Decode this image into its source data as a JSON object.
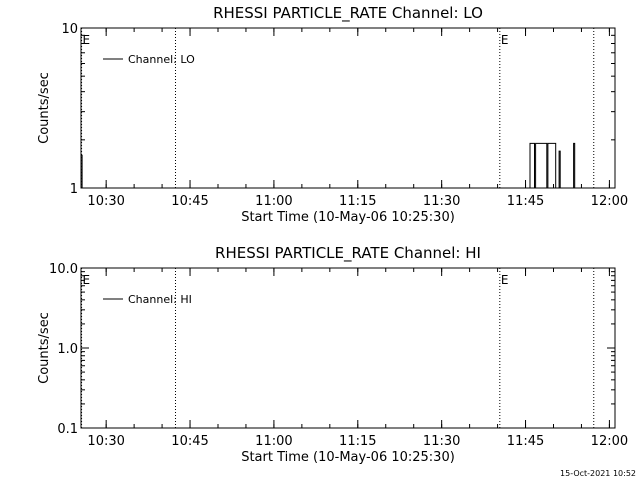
{
  "footer": {
    "timestamp": "15-Oct-2021 10:52"
  },
  "chart_data": [
    {
      "type": "line",
      "title": "RHESSI PARTICLE_RATE Channel: LO",
      "xlabel": "Start Time (10-May-06 10:25:30)",
      "ylabel": "Counts/sec",
      "x_unit": "minutes after 10:25:30",
      "xlim": [
        0,
        95.5
      ],
      "ylim": [
        1,
        10
      ],
      "yscale": "log",
      "x_ticks": [
        {
          "label": "10:30",
          "value": 4.5
        },
        {
          "label": "10:45",
          "value": 19.5
        },
        {
          "label": "11:00",
          "value": 34.5
        },
        {
          "label": "11:15",
          "value": 49.5
        },
        {
          "label": "11:30",
          "value": 64.5
        },
        {
          "label": "11:45",
          "value": 79.5
        },
        {
          "label": "12:00",
          "value": 94.5
        }
      ],
      "y_ticks": [
        {
          "label": "1",
          "value": 1
        },
        {
          "label": "10",
          "value": 10
        }
      ],
      "legend": {
        "position": "top-left",
        "entries": [
          "Channel: LO"
        ]
      },
      "vlines": [
        {
          "x": 0.1,
          "mark": "E"
        },
        {
          "x": 16.9,
          "mark": ""
        },
        {
          "x": 74.9,
          "mark": "E"
        },
        {
          "x": 91.7,
          "mark": ""
        }
      ],
      "series": [
        {
          "name": "Channel: LO",
          "points": [
            [
              0.0,
              1.0
            ],
            [
              0.0,
              1.6
            ],
            [
              0.2,
              1.6
            ],
            [
              0.2,
              1.0
            ],
            [
              80.3,
              1.0
            ],
            [
              80.3,
              1.9
            ],
            [
              81.1,
              1.9
            ],
            [
              81.1,
              1.0
            ],
            [
              81.3,
              1.0
            ],
            [
              81.3,
              1.9
            ],
            [
              83.3,
              1.9
            ],
            [
              83.3,
              1.0
            ],
            [
              83.5,
              1.0
            ],
            [
              83.5,
              1.9
            ],
            [
              84.9,
              1.9
            ],
            [
              84.9,
              1.0
            ],
            [
              85.5,
              1.0
            ],
            [
              85.5,
              1.7
            ],
            [
              85.7,
              1.7
            ],
            [
              85.7,
              1.0
            ],
            [
              88.1,
              1.0
            ],
            [
              88.1,
              1.9
            ],
            [
              88.3,
              1.9
            ],
            [
              88.3,
              1.0
            ]
          ]
        }
      ]
    },
    {
      "type": "line",
      "title": "RHESSI PARTICLE_RATE Channel: HI",
      "xlabel": "Start Time (10-May-06 10:25:30)",
      "ylabel": "Counts/sec",
      "x_unit": "minutes after 10:25:30",
      "xlim": [
        0,
        95.5
      ],
      "ylim": [
        0.1,
        10
      ],
      "yscale": "log",
      "x_ticks": [
        {
          "label": "10:30",
          "value": 4.5
        },
        {
          "label": "10:45",
          "value": 19.5
        },
        {
          "label": "11:00",
          "value": 34.5
        },
        {
          "label": "11:15",
          "value": 49.5
        },
        {
          "label": "11:30",
          "value": 64.5
        },
        {
          "label": "11:45",
          "value": 79.5
        },
        {
          "label": "12:00",
          "value": 94.5
        }
      ],
      "y_ticks": [
        {
          "label": "0.1",
          "value": 0.1
        },
        {
          "label": "1.0",
          "value": 1.0
        },
        {
          "label": "10.0",
          "value": 10.0
        }
      ],
      "legend": {
        "position": "top-left",
        "entries": [
          "Channel: HI"
        ]
      },
      "vlines": [
        {
          "x": 0.1,
          "mark": "E"
        },
        {
          "x": 16.9,
          "mark": ""
        },
        {
          "x": 74.9,
          "mark": "E"
        },
        {
          "x": 91.7,
          "mark": ""
        }
      ],
      "series": [
        {
          "name": "Channel: HI",
          "points": []
        }
      ]
    }
  ]
}
